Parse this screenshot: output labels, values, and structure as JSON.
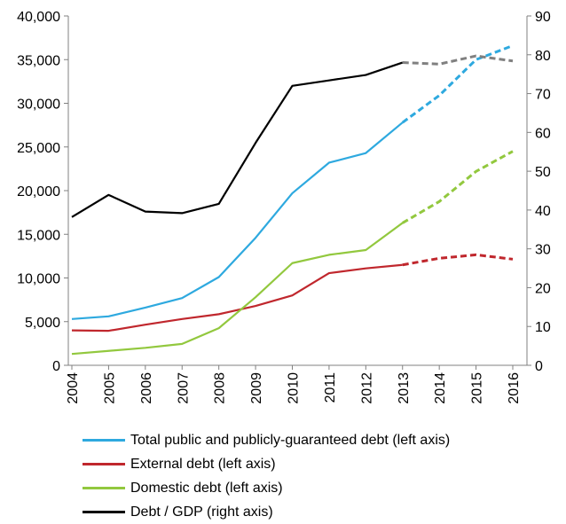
{
  "chart_data": {
    "type": "line",
    "x": [
      "2004",
      "2005",
      "2006",
      "2007",
      "2008",
      "2009",
      "2010",
      "2011",
      "2012",
      "2013",
      "2014",
      "2015",
      "2016"
    ],
    "projection_start": "2013",
    "left_axis": {
      "ylim": [
        0,
        40000
      ],
      "ticks": [
        0,
        5000,
        10000,
        15000,
        20000,
        25000,
        30000,
        35000,
        40000
      ],
      "tick_labels": [
        "0",
        "5,000",
        "10,000",
        "15,000",
        "20,000",
        "25,000",
        "30,000",
        "35,000",
        "40,000"
      ]
    },
    "right_axis": {
      "ylim": [
        0,
        90
      ],
      "ticks": [
        0,
        10,
        20,
        30,
        40,
        50,
        60,
        70,
        80,
        90
      ],
      "tick_labels": [
        "0",
        "10",
        "20",
        "30",
        "40",
        "50",
        "60",
        "70",
        "80",
        "90"
      ]
    },
    "series": [
      {
        "name": "Total public and publicly-guaranteed debt (left axis)",
        "axis": "left",
        "color": "#2EA9DF",
        "values": [
          5300,
          5600,
          6600,
          7700,
          10100,
          14600,
          19700,
          23200,
          24300,
          27800,
          30900,
          35000,
          36600
        ]
      },
      {
        "name": "External debt (left axis)",
        "axis": "left",
        "color": "#C0272D",
        "values": [
          4000,
          3950,
          4650,
          5300,
          5850,
          6800,
          8000,
          10550,
          11100,
          11500,
          12250,
          12650,
          12150
        ]
      },
      {
        "name": "Domestic debt (left axis)",
        "axis": "left",
        "color": "#92C83E",
        "values": [
          1300,
          1650,
          2000,
          2450,
          4250,
          7800,
          11700,
          12650,
          13200,
          16300,
          18750,
          22200,
          24500
        ]
      },
      {
        "name": "Debt / GDP (right axis)",
        "axis": "right",
        "color": "#000000",
        "projection_color": "#808080",
        "values": [
          38.2,
          43.9,
          39.6,
          39.2,
          41.6,
          57.3,
          72.0,
          73.4,
          74.8,
          78.0,
          77.6,
          79.7,
          78.4
        ]
      }
    ],
    "legend_position": "bottom",
    "grid": false
  }
}
